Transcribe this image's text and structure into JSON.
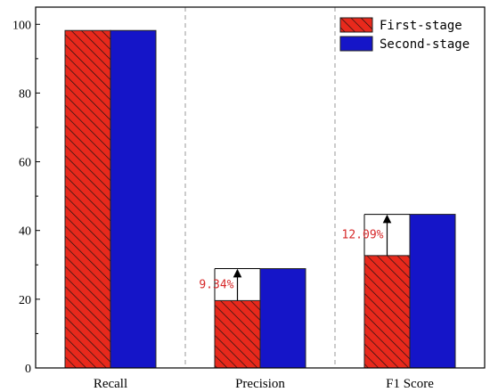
{
  "chart_data": {
    "type": "bar",
    "categories": [
      "Recall",
      "Precision",
      "F1 Score"
    ],
    "series": [
      {
        "name": "First-stage",
        "values": [
          98.2,
          19.6,
          32.7
        ],
        "color": "#e8291c",
        "pattern": "hatch"
      },
      {
        "name": "Second-stage",
        "values": [
          98.2,
          28.9,
          44.7
        ],
        "color": "#1515c8",
        "pattern": "solid"
      }
    ],
    "ylim": [
      0,
      105
    ],
    "yticks": [
      "0",
      "20",
      "40",
      "60",
      "80",
      "100"
    ],
    "annotations": [
      {
        "category": "Precision",
        "text": "9.34%",
        "color": "#d62728"
      },
      {
        "category": "F1 Score",
        "text": "12.09%",
        "color": "#d62728"
      }
    ],
    "legend_position": "top-right",
    "separators": "dashed between categories",
    "grid": false
  }
}
